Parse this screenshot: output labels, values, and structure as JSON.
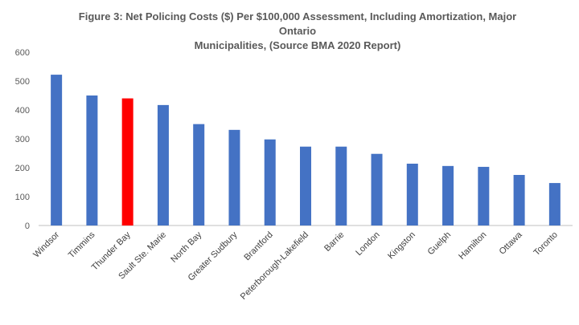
{
  "chart_data": {
    "type": "bar",
    "title_line1": "Figure 3: Net Policing Costs ($) Per $100,000 Assessment, Including Amortization, Major Ontario",
    "title_line2": "Municipalities, (Source BMA 2020 Report)",
    "categories": [
      "Windsor",
      "Timmins",
      "Thunder Bay",
      "Sault Ste. Marie",
      "North Bay",
      "Greater Sudbury",
      "Brantford",
      "Peterborough-Lakefield",
      "Barrie",
      "London",
      "Kingston",
      "Guelph",
      "Hamilton",
      "Ottawa",
      "Toronto"
    ],
    "values": [
      522,
      450,
      440,
      417,
      351,
      331,
      298,
      273,
      273,
      248,
      214,
      206,
      203,
      175,
      147
    ],
    "highlight_category": "Thunder Bay",
    "ylim": [
      0,
      600
    ],
    "yticks": [
      0,
      100,
      200,
      300,
      400,
      500,
      600
    ],
    "grid": false,
    "legend": "none",
    "colors": {
      "bar": "#4472C4",
      "highlight": "#FF0000",
      "axis": "#BFBFBF",
      "text": "#595959"
    }
  }
}
